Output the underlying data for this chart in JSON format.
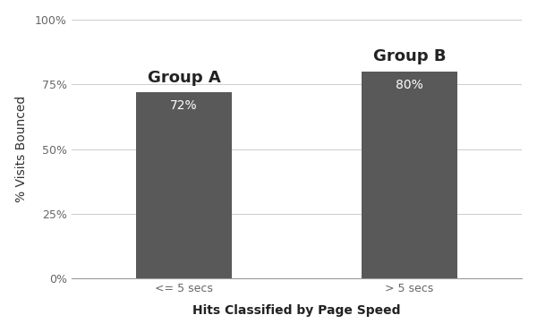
{
  "categories": [
    "<= 5 secs",
    "> 5 secs"
  ],
  "values": [
    0.72,
    0.8
  ],
  "bar_labels": [
    "72%",
    "80%"
  ],
  "group_labels": [
    "Group A",
    "Group B"
  ],
  "bar_color": "#595959",
  "background_color": "#ffffff",
  "ylabel": "% Visits Bounced",
  "xlabel": "Hits Classified by Page Speed",
  "ylim": [
    0,
    1.0
  ],
  "yticks": [
    0,
    0.25,
    0.5,
    0.75,
    1.0
  ],
  "ytick_labels": [
    "0%",
    "25%",
    "50%",
    "75%",
    "100%"
  ],
  "label_fontsize": 10,
  "tick_fontsize": 9,
  "bar_label_fontsize": 10,
  "group_label_fontsize": 13,
  "xlabel_fontsize": 10,
  "bar_positions": [
    1,
    3
  ],
  "xlim": [
    0,
    4
  ]
}
